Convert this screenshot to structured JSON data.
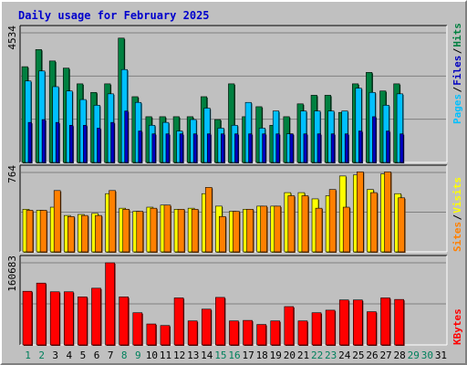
{
  "title": "Daily usage for February 2025",
  "colors": {
    "hits": "#008040",
    "files": "#00c0ff",
    "pages": "#0000c0",
    "sites": "#ff8000",
    "visits": "#ffff00",
    "kbytes": "#ff0000",
    "weekend_day": "#00805c",
    "weekday_day": "#000000"
  },
  "chart_data": [
    {
      "type": "bar",
      "title": "Daily usage for February 2025",
      "panel": "hits_files_pages",
      "y_max_label": "4534",
      "ylim": [
        0,
        4534
      ],
      "legend": [
        "Pages",
        "/",
        "Files",
        "/",
        "Hits"
      ],
      "categories": [
        "1",
        "2",
        "3",
        "4",
        "5",
        "6",
        "7",
        "8",
        "9",
        "10",
        "11",
        "12",
        "13",
        "14",
        "15",
        "16",
        "17",
        "18",
        "19",
        "20",
        "21",
        "22",
        "23",
        "24",
        "25",
        "26",
        "27",
        "28",
        "29",
        "30",
        "31"
      ],
      "series": [
        {
          "name": "Hits",
          "values": [
            3350,
            3950,
            3550,
            3300,
            2750,
            2450,
            2750,
            4350,
            2300,
            1600,
            1600,
            1600,
            1600,
            2300,
            1500,
            2750,
            1600,
            1950,
            1300,
            1600,
            2050,
            2350,
            2350,
            1750,
            2750,
            3150,
            2500,
            2750,
            null,
            null,
            null
          ]
        },
        {
          "name": "Files",
          "values": [
            2850,
            3200,
            2650,
            2500,
            2200,
            2000,
            2400,
            3250,
            2100,
            1300,
            1400,
            1100,
            1500,
            1900,
            1200,
            1300,
            2100,
            1200,
            1800,
            1000,
            1800,
            1800,
            1800,
            1800,
            2600,
            2450,
            2000,
            2400,
            null,
            null,
            null
          ]
        },
        {
          "name": "Pages",
          "values": [
            1400,
            1500,
            1400,
            1300,
            1300,
            1200,
            1400,
            1800,
            1100,
            1000,
            1000,
            1000,
            1000,
            1000,
            1000,
            1000,
            1000,
            1000,
            1000,
            1000,
            1000,
            1000,
            1000,
            1000,
            1100,
            1600,
            1100,
            1000,
            null,
            null,
            null
          ]
        }
      ]
    },
    {
      "type": "bar",
      "panel": "visits_sites",
      "y_max_label": "764",
      "ylim": [
        0,
        764
      ],
      "legend": [
        "Sites",
        "/",
        "Visits"
      ],
      "categories": [
        "1",
        "2",
        "3",
        "4",
        "5",
        "6",
        "7",
        "8",
        "9",
        "10",
        "11",
        "12",
        "13",
        "14",
        "15",
        "16",
        "17",
        "18",
        "19",
        "20",
        "21",
        "22",
        "23",
        "24",
        "25",
        "26",
        "27",
        "28",
        "29",
        "30",
        "31"
      ],
      "series": [
        {
          "name": "Visits",
          "values": [
            410,
            400,
            430,
            350,
            360,
            370,
            560,
            420,
            390,
            430,
            450,
            410,
            420,
            560,
            440,
            390,
            410,
            440,
            440,
            570,
            570,
            510,
            540,
            730,
            740,
            600,
            750,
            560,
            null,
            null,
            null
          ]
        },
        {
          "name": "Sites",
          "values": [
            400,
            400,
            590,
            340,
            350,
            350,
            590,
            410,
            390,
            420,
            450,
            410,
            410,
            620,
            340,
            390,
            410,
            440,
            440,
            540,
            540,
            420,
            600,
            430,
            770,
            570,
            770,
            520,
            null,
            null,
            null
          ]
        }
      ]
    },
    {
      "type": "bar",
      "panel": "kbytes",
      "y_max_label": "160683",
      "ylim": [
        0,
        160683
      ],
      "legend": [
        "KBytes"
      ],
      "categories": [
        "1",
        "2",
        "3",
        "4",
        "5",
        "6",
        "7",
        "8",
        "9",
        "10",
        "11",
        "12",
        "13",
        "14",
        "15",
        "16",
        "17",
        "18",
        "19",
        "20",
        "21",
        "22",
        "23",
        "24",
        "25",
        "26",
        "27",
        "28",
        "29",
        "30",
        "31"
      ],
      "series": [
        {
          "name": "KBytes",
          "values": [
            105000,
            121000,
            104000,
            104000,
            94000,
            111000,
            160683,
            94000,
            63000,
            41000,
            38000,
            92000,
            47000,
            70000,
            93000,
            47000,
            48000,
            40000,
            47000,
            75000,
            47000,
            63000,
            68000,
            88000,
            88000,
            65000,
            92000,
            89000,
            null,
            null,
            null
          ]
        }
      ]
    }
  ],
  "day_labels": [
    "1",
    "2",
    "3",
    "4",
    "5",
    "6",
    "7",
    "8",
    "9",
    "10",
    "11",
    "12",
    "13",
    "14",
    "15",
    "16",
    "17",
    "18",
    "19",
    "20",
    "21",
    "22",
    "23",
    "24",
    "25",
    "26",
    "27",
    "28",
    "29",
    "30",
    "31"
  ],
  "weekend_days": [
    "1",
    "2",
    "8",
    "9",
    "15",
    "16",
    "22",
    "23",
    "29",
    "30"
  ]
}
